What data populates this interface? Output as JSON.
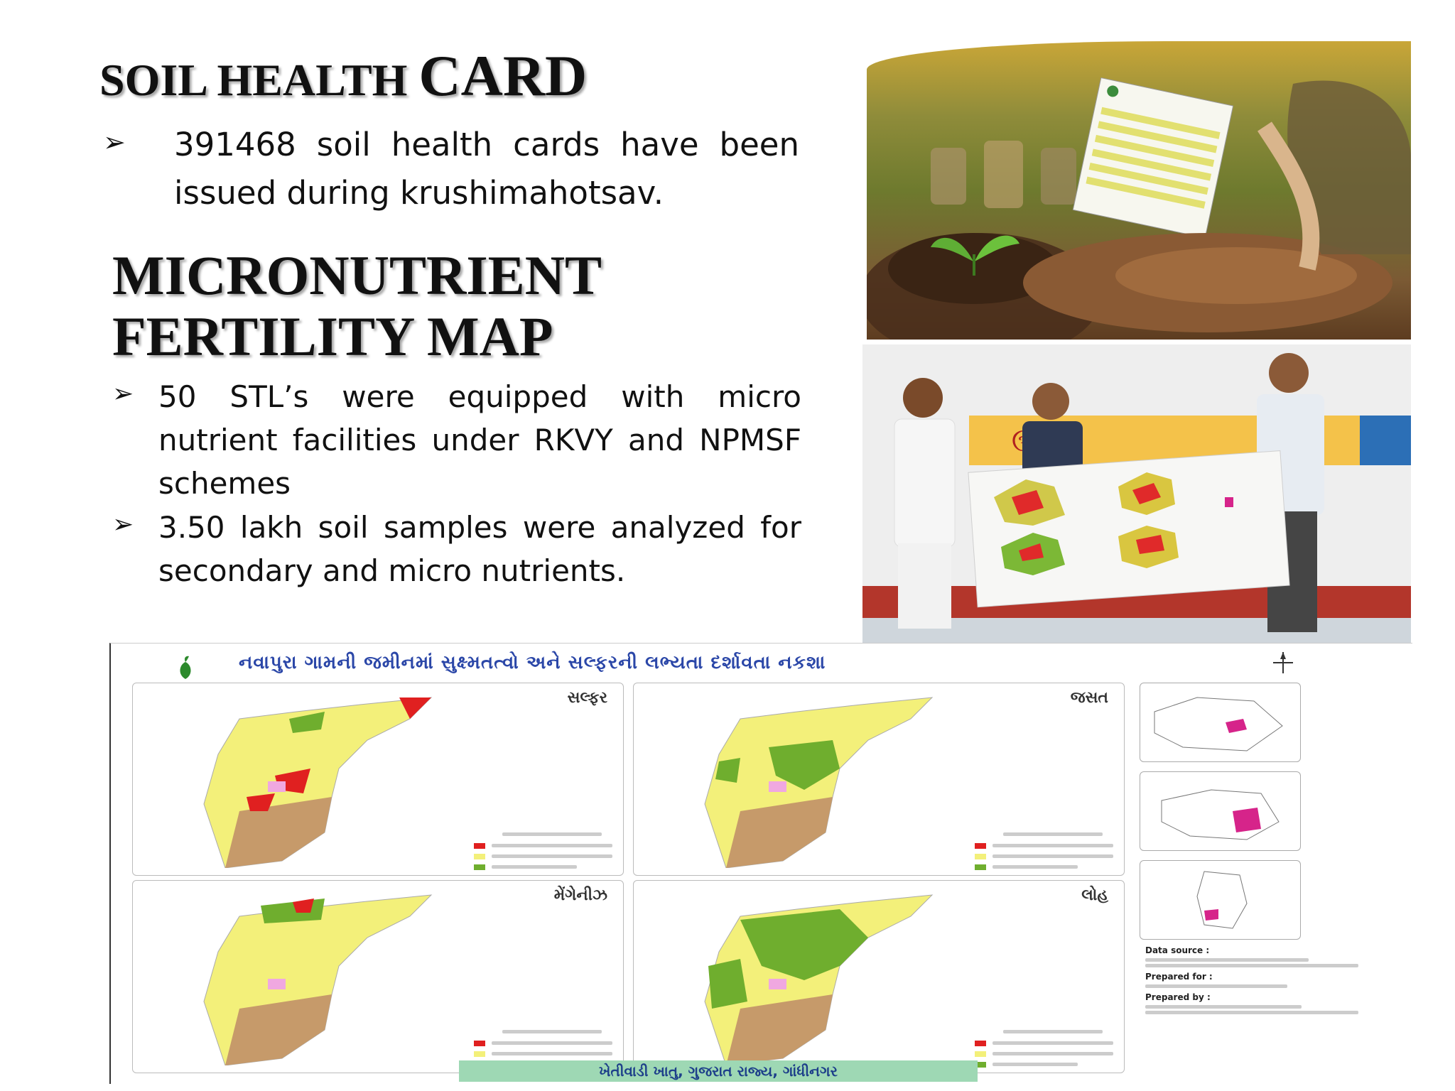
{
  "slide": {
    "heading1_small": "SOIL HEALTH ",
    "heading1_big": "CARD",
    "bullet1": "391468 soil health cards have been issued during krushimahotsav.",
    "heading2_line1": "MICRONUTRIENT",
    "heading2_line2": "FERTILITY MAP",
    "bullet2": "50 STL’s were equipped with micro nutrient facilities under RKVY and NPMSF schemes",
    "bullet3": "3.50 lakh soil samples were analyzed for secondary and micro nutrients.",
    "bullet_icon": "arrowhead-bullet-icon",
    "arrow_glyph": "➢"
  },
  "map_poster": {
    "title": "નવાપુરા ગામની જમીનમાં સુક્ષ્મતત્વો અને સલ્ફરની લભ્યતા દર્શાવતા નકશા",
    "panel_titles": [
      "સલ્ફર",
      "જસત",
      "મેંગેનીઝ",
      "લોહ"
    ],
    "footer": "ખેતીવાડી ખાતુ, ગુજરાત રાજ્ય, ગાંધીનગર",
    "data_source_label": "Data source :",
    "prepared_for_label": "Prepared for :",
    "prepared_by_label": "Prepared by :",
    "colors": {
      "deficient": "#e02020",
      "medium": "#f3f07a",
      "sufficient": "#6fae2e",
      "land": "#c69a6a",
      "village": "#f0a8e0"
    }
  }
}
